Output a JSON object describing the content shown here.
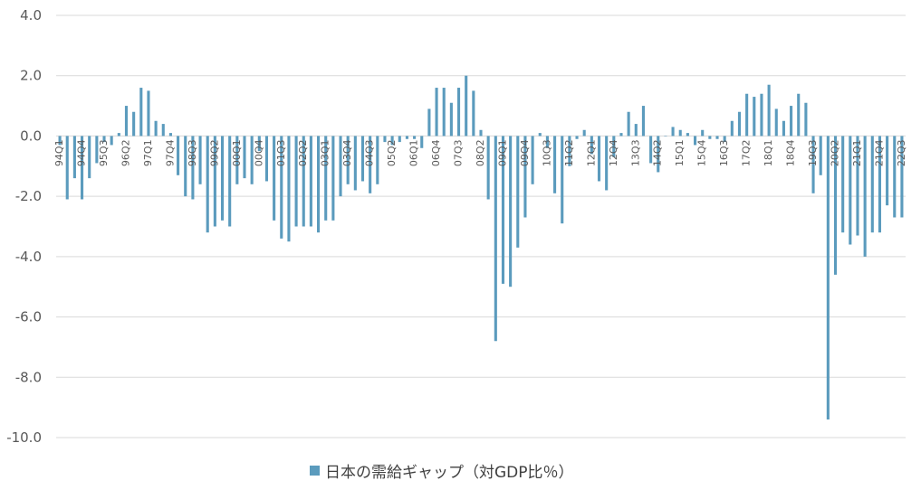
{
  "chart_data": {
    "type": "bar",
    "title": "",
    "xlabel": "",
    "ylabel": "",
    "ylim": [
      -10,
      4
    ],
    "yticks": [
      "4.0",
      "2.0",
      "0.0",
      "-2.0",
      "-4.0",
      "-6.0",
      "-8.0",
      "-10.0"
    ],
    "grid": true,
    "legend_position": "bottom",
    "bar_color": "#5b9bbd",
    "categories": [
      "94Q1",
      "94Q2",
      "94Q3",
      "94Q4",
      "95Q1",
      "95Q2",
      "95Q3",
      "95Q4",
      "96Q1",
      "96Q2",
      "96Q3",
      "96Q4",
      "97Q1",
      "97Q2",
      "97Q3",
      "97Q4",
      "98Q1",
      "98Q2",
      "98Q3",
      "98Q4",
      "99Q1",
      "99Q2",
      "99Q3",
      "99Q4",
      "00Q1",
      "00Q2",
      "00Q3",
      "00Q4",
      "01Q1",
      "01Q2",
      "01Q3",
      "01Q4",
      "02Q1",
      "02Q2",
      "02Q3",
      "02Q4",
      "03Q1",
      "03Q2",
      "03Q3",
      "03Q4",
      "04Q1",
      "04Q2",
      "04Q3",
      "04Q4",
      "05Q1",
      "05Q2",
      "05Q3",
      "05Q4",
      "06Q1",
      "06Q2",
      "06Q3",
      "06Q4",
      "07Q1",
      "07Q2",
      "07Q3",
      "07Q4",
      "08Q1",
      "08Q2",
      "08Q3",
      "08Q4",
      "09Q1",
      "09Q2",
      "09Q3",
      "09Q4",
      "10Q1",
      "10Q2",
      "10Q3",
      "10Q4",
      "11Q1",
      "11Q2",
      "11Q3",
      "11Q4",
      "12Q1",
      "12Q2",
      "12Q3",
      "12Q4",
      "13Q1",
      "13Q2",
      "13Q3",
      "13Q4",
      "14Q1",
      "14Q2",
      "14Q3",
      "14Q4",
      "15Q1",
      "15Q2",
      "15Q3",
      "15Q4",
      "16Q1",
      "16Q2",
      "16Q3",
      "16Q4",
      "17Q1",
      "17Q2",
      "17Q3",
      "17Q4",
      "18Q1",
      "18Q2",
      "18Q3",
      "18Q4",
      "19Q1",
      "19Q2",
      "19Q3",
      "19Q4",
      "20Q1",
      "20Q2",
      "20Q3",
      "20Q4",
      "21Q1",
      "21Q2",
      "21Q3",
      "21Q4",
      "22Q1",
      "22Q2",
      "22Q3"
    ],
    "series": [
      {
        "name": "日本の需給ギャップ（対GDP比％）",
        "values": [
          -0.3,
          -2.1,
          -1.4,
          -2.1,
          -1.4,
          -0.9,
          -0.2,
          -0.3,
          0.1,
          1.0,
          0.8,
          1.6,
          1.5,
          0.5,
          0.4,
          0.1,
          -1.3,
          -2.0,
          -2.1,
          -1.6,
          -3.2,
          -3.0,
          -2.8,
          -3.0,
          -1.6,
          -1.4,
          -1.6,
          -0.5,
          -1.5,
          -2.8,
          -3.4,
          -3.5,
          -3.0,
          -3.0,
          -3.0,
          -3.2,
          -2.8,
          -2.8,
          -2.0,
          -1.6,
          -1.8,
          -1.5,
          -1.9,
          -1.6,
          -0.2,
          -0.3,
          -0.2,
          -0.1,
          -0.1,
          -0.4,
          0.9,
          1.6,
          1.6,
          1.1,
          1.6,
          2.0,
          1.5,
          0.2,
          -2.1,
          -6.8,
          -4.9,
          -5.0,
          -3.7,
          -2.7,
          -1.6,
          0.1,
          -0.4,
          -1.9,
          -2.9,
          -1.0,
          -0.1,
          0.2,
          -0.6,
          -1.5,
          -1.8,
          -0.7,
          0.1,
          0.8,
          0.4,
          1.0,
          -0.9,
          -1.2,
          0.0,
          0.3,
          0.2,
          0.1,
          -0.3,
          0.2,
          -0.1,
          -0.1,
          -0.2,
          0.5,
          0.8,
          1.4,
          1.3,
          1.4,
          1.7,
          0.9,
          0.5,
          1.0,
          1.4,
          1.1,
          -1.9,
          -1.3,
          -9.4,
          -4.6,
          -3.2,
          -3.6,
          -3.3,
          -4.0,
          -3.2,
          -3.2,
          -2.3,
          -2.7,
          -2.7
        ]
      }
    ]
  }
}
